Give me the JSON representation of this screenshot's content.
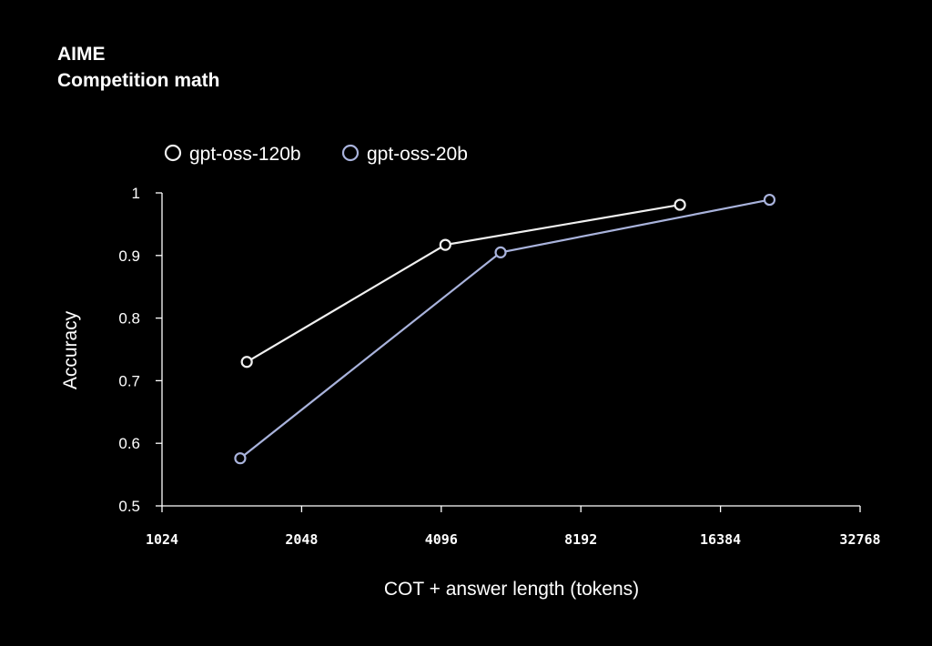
{
  "chart_data": {
    "type": "line",
    "title": "AIME",
    "subtitle": "Competition math",
    "xlabel": "COT + answer length (tokens)",
    "ylabel": "Accuracy",
    "x_scale": "log2",
    "xlim": [
      1024,
      32768
    ],
    "ylim": [
      0.5,
      1
    ],
    "x_ticks": [
      1024,
      2048,
      4096,
      8192,
      16384,
      32768
    ],
    "x_tick_labels": [
      "1024",
      "2048",
      "4096",
      "8192",
      "16384",
      "32768"
    ],
    "y_ticks": [
      0.5,
      0.6,
      0.7,
      0.8,
      0.9,
      1
    ],
    "y_tick_labels": [
      "0.5",
      "0.6",
      "0.7",
      "0.8",
      "0.9",
      "1"
    ],
    "grid": false,
    "legend_position": "top-left",
    "series": [
      {
        "name": "gpt-oss-120b",
        "color": "#f0f0f0",
        "x": [
          1560,
          4180,
          13400
        ],
        "y": [
          0.73,
          0.917,
          0.981
        ]
      },
      {
        "name": "gpt-oss-20b",
        "color": "#a9b3dc",
        "x": [
          1510,
          5500,
          20900
        ],
        "y": [
          0.576,
          0.905,
          0.989
        ]
      }
    ]
  }
}
